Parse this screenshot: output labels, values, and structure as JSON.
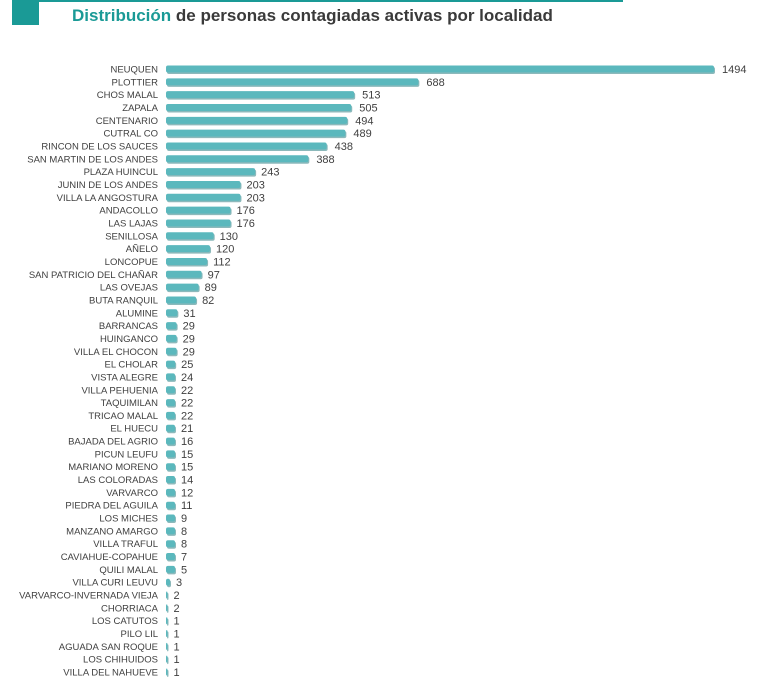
{
  "title": {
    "highlight": "Distribución",
    "rest": " de personas contagiadas activas por localidad"
  },
  "colors": {
    "bar": "#5bb8bd",
    "bar_shadow": "#3f8a8e",
    "accent": "#1a9a96"
  },
  "chart_data": {
    "type": "bar",
    "orientation": "horizontal",
    "title": "Distribución de personas contagiadas activas por localidad",
    "xlim": [
      0,
      1494
    ],
    "categories": [
      "NEUQUEN",
      "PLOTTIER",
      "CHOS MALAL",
      "ZAPALA",
      "CENTENARIO",
      "CUTRAL CO",
      "RINCON DE LOS SAUCES",
      "SAN MARTIN DE LOS ANDES",
      "PLAZA HUINCUL",
      "JUNIN DE LOS ANDES",
      "VILLA LA ANGOSTURA",
      "ANDACOLLO",
      "LAS LAJAS",
      "SENILLOSA",
      "AÑELO",
      "LONCOPUE",
      "SAN PATRICIO DEL CHAÑAR",
      "LAS OVEJAS",
      "BUTA RANQUIL",
      "ALUMINE",
      "BARRANCAS",
      "HUINGANCO",
      "VILLA EL CHOCON",
      "EL CHOLAR",
      "VISTA ALEGRE",
      "VILLA PEHUENIA",
      "TAQUIMILAN",
      "TRICAO MALAL",
      "EL HUECU",
      "BAJADA DEL AGRIO",
      "PICUN LEUFU",
      "MARIANO MORENO",
      "LAS COLORADAS",
      "VARVARCO",
      "PIEDRA DEL AGUILA",
      "LOS MICHES",
      "MANZANO AMARGO",
      "VILLA TRAFUL",
      "CAVIAHUE-COPAHUE",
      "QUILI MALAL",
      "VILLA CURI LEUVU",
      "VARVARCO-INVERNADA VIEJA",
      "CHORRIACA",
      "LOS CATUTOS",
      "PILO LIL",
      "AGUADA SAN ROQUE",
      "LOS CHIHUIDOS",
      "VILLA DEL NAHUEVE"
    ],
    "values": [
      1494,
      688,
      513,
      505,
      494,
      489,
      438,
      388,
      243,
      203,
      203,
      176,
      176,
      130,
      120,
      112,
      97,
      89,
      82,
      31,
      29,
      29,
      29,
      25,
      24,
      22,
      22,
      22,
      21,
      16,
      15,
      15,
      14,
      12,
      11,
      9,
      8,
      8,
      7,
      5,
      3,
      2,
      2,
      1,
      1,
      1,
      1,
      1
    ]
  }
}
